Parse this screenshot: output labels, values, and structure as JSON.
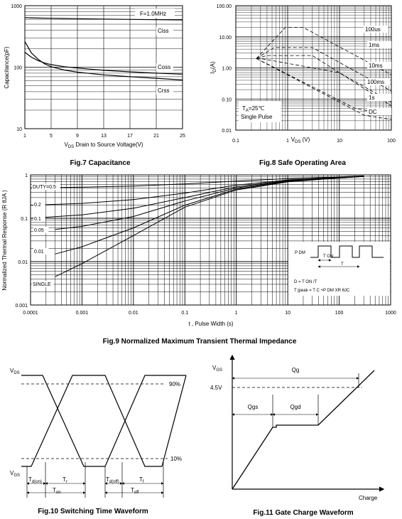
{
  "chart_data": [
    {
      "type": "line",
      "caption": "Fig.7 Capacitance",
      "xlabel": "V DS Drain to Source Voltage(V)",
      "ylabel": "Capacitance(pF)",
      "x_ticks": [
        "1",
        "5",
        "9",
        "13",
        "17",
        "21",
        "25"
      ],
      "y_ticks": [
        "10",
        "100",
        "1000"
      ],
      "xlim": [
        1,
        25
      ],
      "ylim": [
        10,
        1000
      ],
      "y_scale": "log",
      "annotation": "F=1.0MHz",
      "series": [
        {
          "name": "Ciss",
          "x": [
            1,
            2,
            3,
            5,
            7,
            9,
            13,
            17,
            21,
            25
          ],
          "y": [
            640,
            635,
            630,
            625,
            620,
            615,
            605,
            598,
            592,
            585
          ]
        },
        {
          "name": "Coss",
          "x": [
            1,
            2,
            3,
            4,
            5,
            7,
            9,
            13,
            17,
            21,
            25
          ],
          "y": [
            175,
            145,
            128,
            117,
            110,
            102,
            97,
            89,
            84,
            80,
            77
          ]
        },
        {
          "name": "Crss",
          "x": [
            1,
            2,
            3,
            4,
            5,
            7,
            9,
            13,
            17,
            21,
            25
          ],
          "y": [
            260,
            170,
            135,
            113,
            102,
            90,
            83,
            75,
            70,
            66,
            62
          ]
        }
      ]
    },
    {
      "type": "line",
      "caption": "Fig.8 Safe Operating Area",
      "xlabel": "V DS (V)",
      "ylabel": "I D (A)",
      "x_ticks": [
        "0.1",
        "1",
        "10",
        "100"
      ],
      "y_ticks": [
        "0.01",
        "0.10",
        "1.00",
        "10.00",
        "100.00"
      ],
      "xlim": [
        0.1,
        100
      ],
      "ylim": [
        0.01,
        100
      ],
      "x_scale": "log",
      "y_scale": "log",
      "annotations": [
        "T A=25℃",
        "Single Pulse"
      ],
      "series": [
        {
          "name": "100us",
          "x": [
            0.25,
            0.9,
            2,
            100
          ],
          "y": [
            2,
            20,
            20,
            0.6
          ]
        },
        {
          "name": "1ms",
          "x": [
            0.25,
            0.55,
            3,
            100
          ],
          "y": [
            2,
            4.5,
            4.5,
            0.18
          ]
        },
        {
          "name": "10ms",
          "x": [
            0.25,
            0.4,
            3,
            100
          ],
          "y": [
            2,
            2.5,
            2.5,
            0.06
          ]
        },
        {
          "name": "100ms",
          "x": [
            0.25,
            0.3,
            10,
            100
          ],
          "y": [
            2,
            2,
            0.7,
            0.08
          ]
        },
        {
          "name": "1s",
          "x": [
            0.25,
            20,
            100
          ],
          "y": [
            2,
            0.05,
            0.03
          ]
        },
        {
          "name": "DC",
          "x": [
            0.25,
            30,
            100
          ],
          "y": [
            2,
            0.03,
            0.022
          ]
        }
      ]
    },
    {
      "type": "line",
      "caption": "Fig.9 Normalized Maximum Transient Thermal Impedance",
      "xlabel": "t , Pulse Width (s)",
      "ylabel": "Normalized Thermal Response (R θJA )",
      "x_ticks": [
        "0.0001",
        "0.001",
        "0.01",
        "0.1",
        "1",
        "10",
        "100",
        "1000"
      ],
      "y_ticks": [
        "0.001",
        "0.01",
        "0.1",
        "1"
      ],
      "xlim": [
        0.0001,
        1000
      ],
      "ylim": [
        0.001,
        1
      ],
      "x_scale": "log",
      "y_scale": "log",
      "series": [
        {
          "name": "DUTY=0.5",
          "x": [
            0.0001,
            0.001,
            0.01,
            0.1,
            1,
            10,
            100,
            300
          ],
          "y": [
            0.5,
            0.52,
            0.55,
            0.62,
            0.72,
            0.82,
            0.9,
            0.95
          ]
        },
        {
          "name": "0.2",
          "x": [
            0.0001,
            0.001,
            0.01,
            0.1,
            1,
            10,
            100,
            300
          ],
          "y": [
            0.2,
            0.22,
            0.27,
            0.38,
            0.58,
            0.76,
            0.88,
            0.93
          ]
        },
        {
          "name": "0.1",
          "x": [
            0.0001,
            0.001,
            0.01,
            0.1,
            1,
            10,
            100,
            300
          ],
          "y": [
            0.1,
            0.12,
            0.17,
            0.3,
            0.53,
            0.74,
            0.87,
            0.93
          ]
        },
        {
          "name": "0.05",
          "x": [
            0.0003,
            0.001,
            0.01,
            0.1,
            1,
            10,
            100,
            300
          ],
          "y": [
            0.055,
            0.065,
            0.11,
            0.25,
            0.5,
            0.72,
            0.86,
            0.92
          ]
        },
        {
          "name": "0.01",
          "x": [
            0.0003,
            0.001,
            0.01,
            0.1,
            1,
            10,
            100,
            300
          ],
          "y": [
            0.015,
            0.022,
            0.06,
            0.2,
            0.47,
            0.7,
            0.85,
            0.92
          ]
        },
        {
          "name": "SINGLE",
          "x": [
            0.0003,
            0.001,
            0.01,
            0.1,
            1,
            10,
            100,
            300
          ],
          "y": [
            0.0045,
            0.009,
            0.04,
            0.18,
            0.45,
            0.69,
            0.85,
            0.92
          ]
        }
      ],
      "inset": {
        "pdm": "P DM",
        "ton": "T ON",
        "t": "T",
        "eq1": "D = T ON /T",
        "eq2": "T jpeak = T C +P DM XR θJC"
      }
    },
    {
      "type": "diagram",
      "caption": "Fig.10 Switching Time Waveform",
      "labels": {
        "vds": "V DS",
        "vgs": "V GS",
        "p90": "90%",
        "p10": "10%",
        "tdon": "T d(on)",
        "tr": "T r",
        "tdoff": "T d(off)",
        "tf": "T f",
        "ton": "T on",
        "toff": "T off"
      }
    },
    {
      "type": "diagram",
      "caption": "Fig.11 Gate Charge Waveform",
      "labels": {
        "vgs": "V GS",
        "v45": "4.5V",
        "qg": "Qg",
        "qgs": "Qgs",
        "qgd": "Qgd",
        "charge": "Charge"
      }
    }
  ]
}
